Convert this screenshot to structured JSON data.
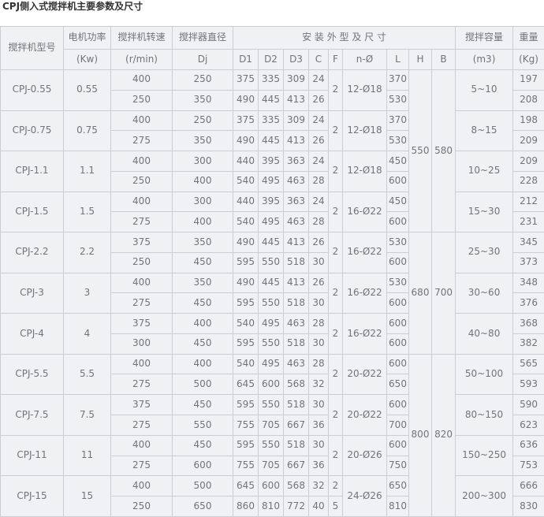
{
  "title": "CPJ侧入式搅拌机主要参数及尺寸",
  "colors": {
    "table_bg": "#f0f1f2",
    "border": "#c9ced3",
    "text": "#707478",
    "title_text": "#333333",
    "page_bg": "#ffffff"
  },
  "table": {
    "header": {
      "model": "搅拌机型号",
      "power_top": "电机功率",
      "power_unit": "(Kw)",
      "speed_top": "搅拌机转速",
      "speed_unit": "(r/min)",
      "impeller_top": "搅拌器直径",
      "impeller_unit": "Dj",
      "install_group": "安 装 外 型 及 尺 寸",
      "install_cols": [
        "D1",
        "D2",
        "D3",
        "C",
        "F",
        "n-Ø",
        "L",
        "H",
        "B"
      ],
      "capacity_top": "搅拌容量",
      "capacity_unit": "(m3)",
      "weight_top": "重量",
      "weight_unit": "(Kg)"
    },
    "hb_groups": [
      {
        "model_count": 4,
        "h": "550",
        "b": "580"
      },
      {
        "model_count": 3,
        "h": "680",
        "b": "700"
      },
      {
        "model_count": 4,
        "h": "800",
        "b": "820"
      }
    ],
    "models": [
      {
        "model": "CPJ-0.55",
        "power": "0.55",
        "f": "2",
        "n_hole": "12-Ø18",
        "capacity": "5~10",
        "rows": [
          {
            "speed": "400",
            "dj": "250",
            "d1": "375",
            "d2": "335",
            "d3": "309",
            "c": "24",
            "l": "370",
            "weight": "197"
          },
          {
            "speed": "250",
            "dj": "350",
            "d1": "490",
            "d2": "445",
            "d3": "413",
            "c": "26",
            "l": "530",
            "weight": "208"
          }
        ]
      },
      {
        "model": "CPJ-0.75",
        "power": "0.75",
        "f": "2",
        "n_hole": "12-Ø18",
        "capacity": "8~15",
        "rows": [
          {
            "speed": "400",
            "dj": "250",
            "d1": "375",
            "d2": "335",
            "d3": "309",
            "c": "24",
            "l": "370",
            "weight": "198"
          },
          {
            "speed": "275",
            "dj": "350",
            "d1": "490",
            "d2": "445",
            "d3": "413",
            "c": "26",
            "l": "530",
            "weight": "209"
          }
        ]
      },
      {
        "model": "CPJ-1.1",
        "power": "1.1",
        "f": "2",
        "n_hole": "12-Ø18",
        "capacity": "10~25",
        "rows": [
          {
            "speed": "400",
            "dj": "300",
            "d1": "440",
            "d2": "395",
            "d3": "363",
            "c": "24",
            "l": "450",
            "weight": "209"
          },
          {
            "speed": "250",
            "dj": "400",
            "d1": "540",
            "d2": "495",
            "d3": "463",
            "c": "28",
            "l": "600",
            "weight": "228"
          }
        ]
      },
      {
        "model": "CPJ-1.5",
        "power": "1.5",
        "f": "2",
        "n_hole": "16-Ø22",
        "capacity": "15~30",
        "rows": [
          {
            "speed": "400",
            "dj": "300",
            "d1": "440",
            "d2": "395",
            "d3": "363",
            "c": "24",
            "l": "450",
            "weight": "212"
          },
          {
            "speed": "275",
            "dj": "400",
            "d1": "540",
            "d2": "495",
            "d3": "463",
            "c": "28",
            "l": "600",
            "weight": "231"
          }
        ]
      },
      {
        "model": "CPJ-2.2",
        "power": "2.2",
        "f": "2",
        "n_hole": "16-Ø22",
        "capacity": "25~30",
        "rows": [
          {
            "speed": "375",
            "dj": "350",
            "d1": "490",
            "d2": "445",
            "d3": "413",
            "c": "26",
            "l": "530",
            "weight": "345"
          },
          {
            "speed": "250",
            "dj": "450",
            "d1": "595",
            "d2": "550",
            "d3": "518",
            "c": "30",
            "l": "600",
            "weight": "373"
          }
        ]
      },
      {
        "model": "CPJ-3",
        "power": "3",
        "f": "2",
        "n_hole": "16-Ø22",
        "capacity": "30~60",
        "rows": [
          {
            "speed": "400",
            "dj": "350",
            "d1": "490",
            "d2": "445",
            "d3": "413",
            "c": "26",
            "l": "530",
            "weight": "348"
          },
          {
            "speed": "275",
            "dj": "450",
            "d1": "595",
            "d2": "550",
            "d3": "518",
            "c": "30",
            "l": "600",
            "weight": "376"
          }
        ]
      },
      {
        "model": "CPJ-4",
        "power": "4",
        "f": "2",
        "n_hole": "16-Ø22",
        "capacity": "40~80",
        "rows": [
          {
            "speed": "375",
            "dj": "400",
            "d1": "540",
            "d2": "495",
            "d3": "463",
            "c": "28",
            "l": "600",
            "weight": "368"
          },
          {
            "speed": "300",
            "dj": "450",
            "d1": "595",
            "d2": "550",
            "d3": "518",
            "c": "30",
            "l": "600",
            "weight": "382"
          }
        ]
      },
      {
        "model": "CPJ-5.5",
        "power": "5.5",
        "f": "2",
        "n_hole": "20-Ø22",
        "capacity": "50~100",
        "rows": [
          {
            "speed": "400",
            "dj": "400",
            "d1": "540",
            "d2": "495",
            "d3": "463",
            "c": "28",
            "l": "600",
            "weight": "565"
          },
          {
            "speed": "275",
            "dj": "500",
            "d1": "645",
            "d2": "600",
            "d3": "568",
            "c": "32",
            "l": "650",
            "weight": "593"
          }
        ]
      },
      {
        "model": "CPJ-7.5",
        "power": "7.5",
        "f": "2",
        "n_hole": "20-Ø22",
        "capacity": "80~150",
        "rows": [
          {
            "speed": "375",
            "dj": "450",
            "d1": "595",
            "d2": "550",
            "d3": "518",
            "c": "30",
            "l": "600",
            "weight": "590"
          },
          {
            "speed": "275",
            "dj": "550",
            "d1": "755",
            "d2": "705",
            "d3": "667",
            "c": "36",
            "l": "700",
            "weight": "623"
          }
        ]
      },
      {
        "model": "CPJ-11",
        "power": "11",
        "f": "2",
        "n_hole": "20-Ø26",
        "capacity": "150~250",
        "rows": [
          {
            "speed": "400",
            "dj": "450",
            "d1": "595",
            "d2": "550",
            "d3": "518",
            "c": "30",
            "l": "600",
            "weight": "636"
          },
          {
            "speed": "275",
            "dj": "600",
            "d1": "755",
            "d2": "705",
            "d3": "667",
            "c": "36",
            "l": "750",
            "weight": "753"
          }
        ]
      },
      {
        "model": "CPJ-15",
        "power": "15",
        "f": null,
        "n_hole": "24-Ø26",
        "capacity": "200~300",
        "rows": [
          {
            "speed": "400",
            "dj": "500",
            "d1": "645",
            "d2": "600",
            "d3": "568",
            "c": "32",
            "f": "2",
            "l": "650",
            "weight": "666"
          },
          {
            "speed": "250",
            "dj": "650",
            "d1": "860",
            "d2": "810",
            "d3": "772",
            "c": "40",
            "f": "5",
            "l": "810",
            "weight": "830"
          }
        ]
      }
    ]
  }
}
